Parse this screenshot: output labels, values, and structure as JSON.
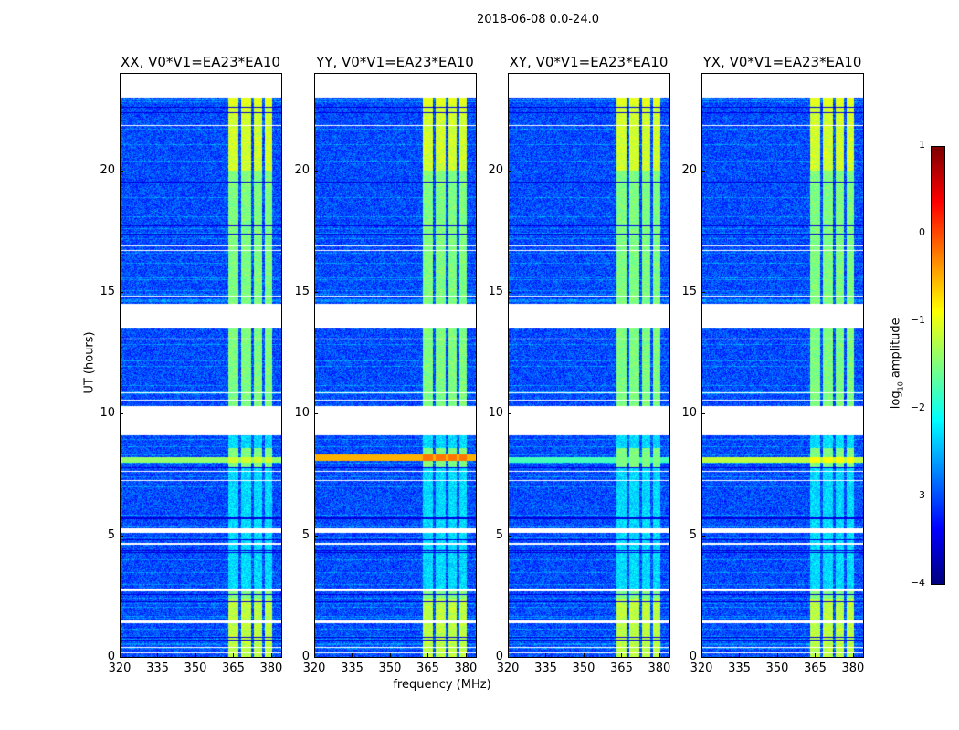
{
  "chart_data": {
    "type": "heatmap",
    "title": "2018-06-08 0.0-24.0",
    "xlabel": "frequency (MHz)",
    "ylabel": "UT (hours)",
    "xlim": [
      320,
      384
    ],
    "ylim": [
      0,
      24
    ],
    "xticks": [
      "320",
      "335",
      "350",
      "365",
      "380"
    ],
    "xtick_values": [
      320,
      335,
      350,
      365,
      380
    ],
    "yticks": [
      "0",
      "5",
      "10",
      "15",
      "20"
    ],
    "ytick_values": [
      0,
      5,
      10,
      15,
      20
    ],
    "colorbar": {
      "label_prefix": "log",
      "label_sub": "10",
      "label_suffix": " amplitude",
      "range": [
        -4,
        1
      ],
      "ticks": [
        "1",
        "0",
        "−1",
        "−2",
        "−3",
        "−4"
      ],
      "tick_values": [
        1,
        0,
        -1,
        -2,
        -3,
        -4
      ],
      "colormap": "jet"
    },
    "panels": [
      {
        "title": "XX, V0*V1=EA23*EA10",
        "rfi_row_hour": 8.1,
        "rfi_level": -1.4
      },
      {
        "title": "YY, V0*V1=EA23*EA10",
        "rfi_row_hour": 8.2,
        "rfi_level": -0.5
      },
      {
        "title": "XY, V0*V1=EA23*EA10",
        "rfi_row_hour": 8.1,
        "rfi_level": -1.8
      },
      {
        "title": "YX, V0*V1=EA23*EA10",
        "rfi_row_hour": 8.1,
        "rfi_level": -1.2
      }
    ],
    "background_level": -3.0,
    "signal_subbands_mhz": [
      [
        363,
        367
      ],
      [
        368,
        372
      ],
      [
        373,
        376.5
      ],
      [
        377.5,
        380.5
      ]
    ],
    "signal_level": -1.5,
    "flagged_hours": [
      [
        13.5,
        14.5
      ],
      [
        9.1,
        10.3
      ],
      [
        23.0,
        24.0
      ],
      [
        2.7,
        2.8
      ],
      [
        5.1,
        5.3
      ],
      [
        4.6,
        4.7
      ],
      [
        1.4,
        1.5
      ]
    ]
  }
}
